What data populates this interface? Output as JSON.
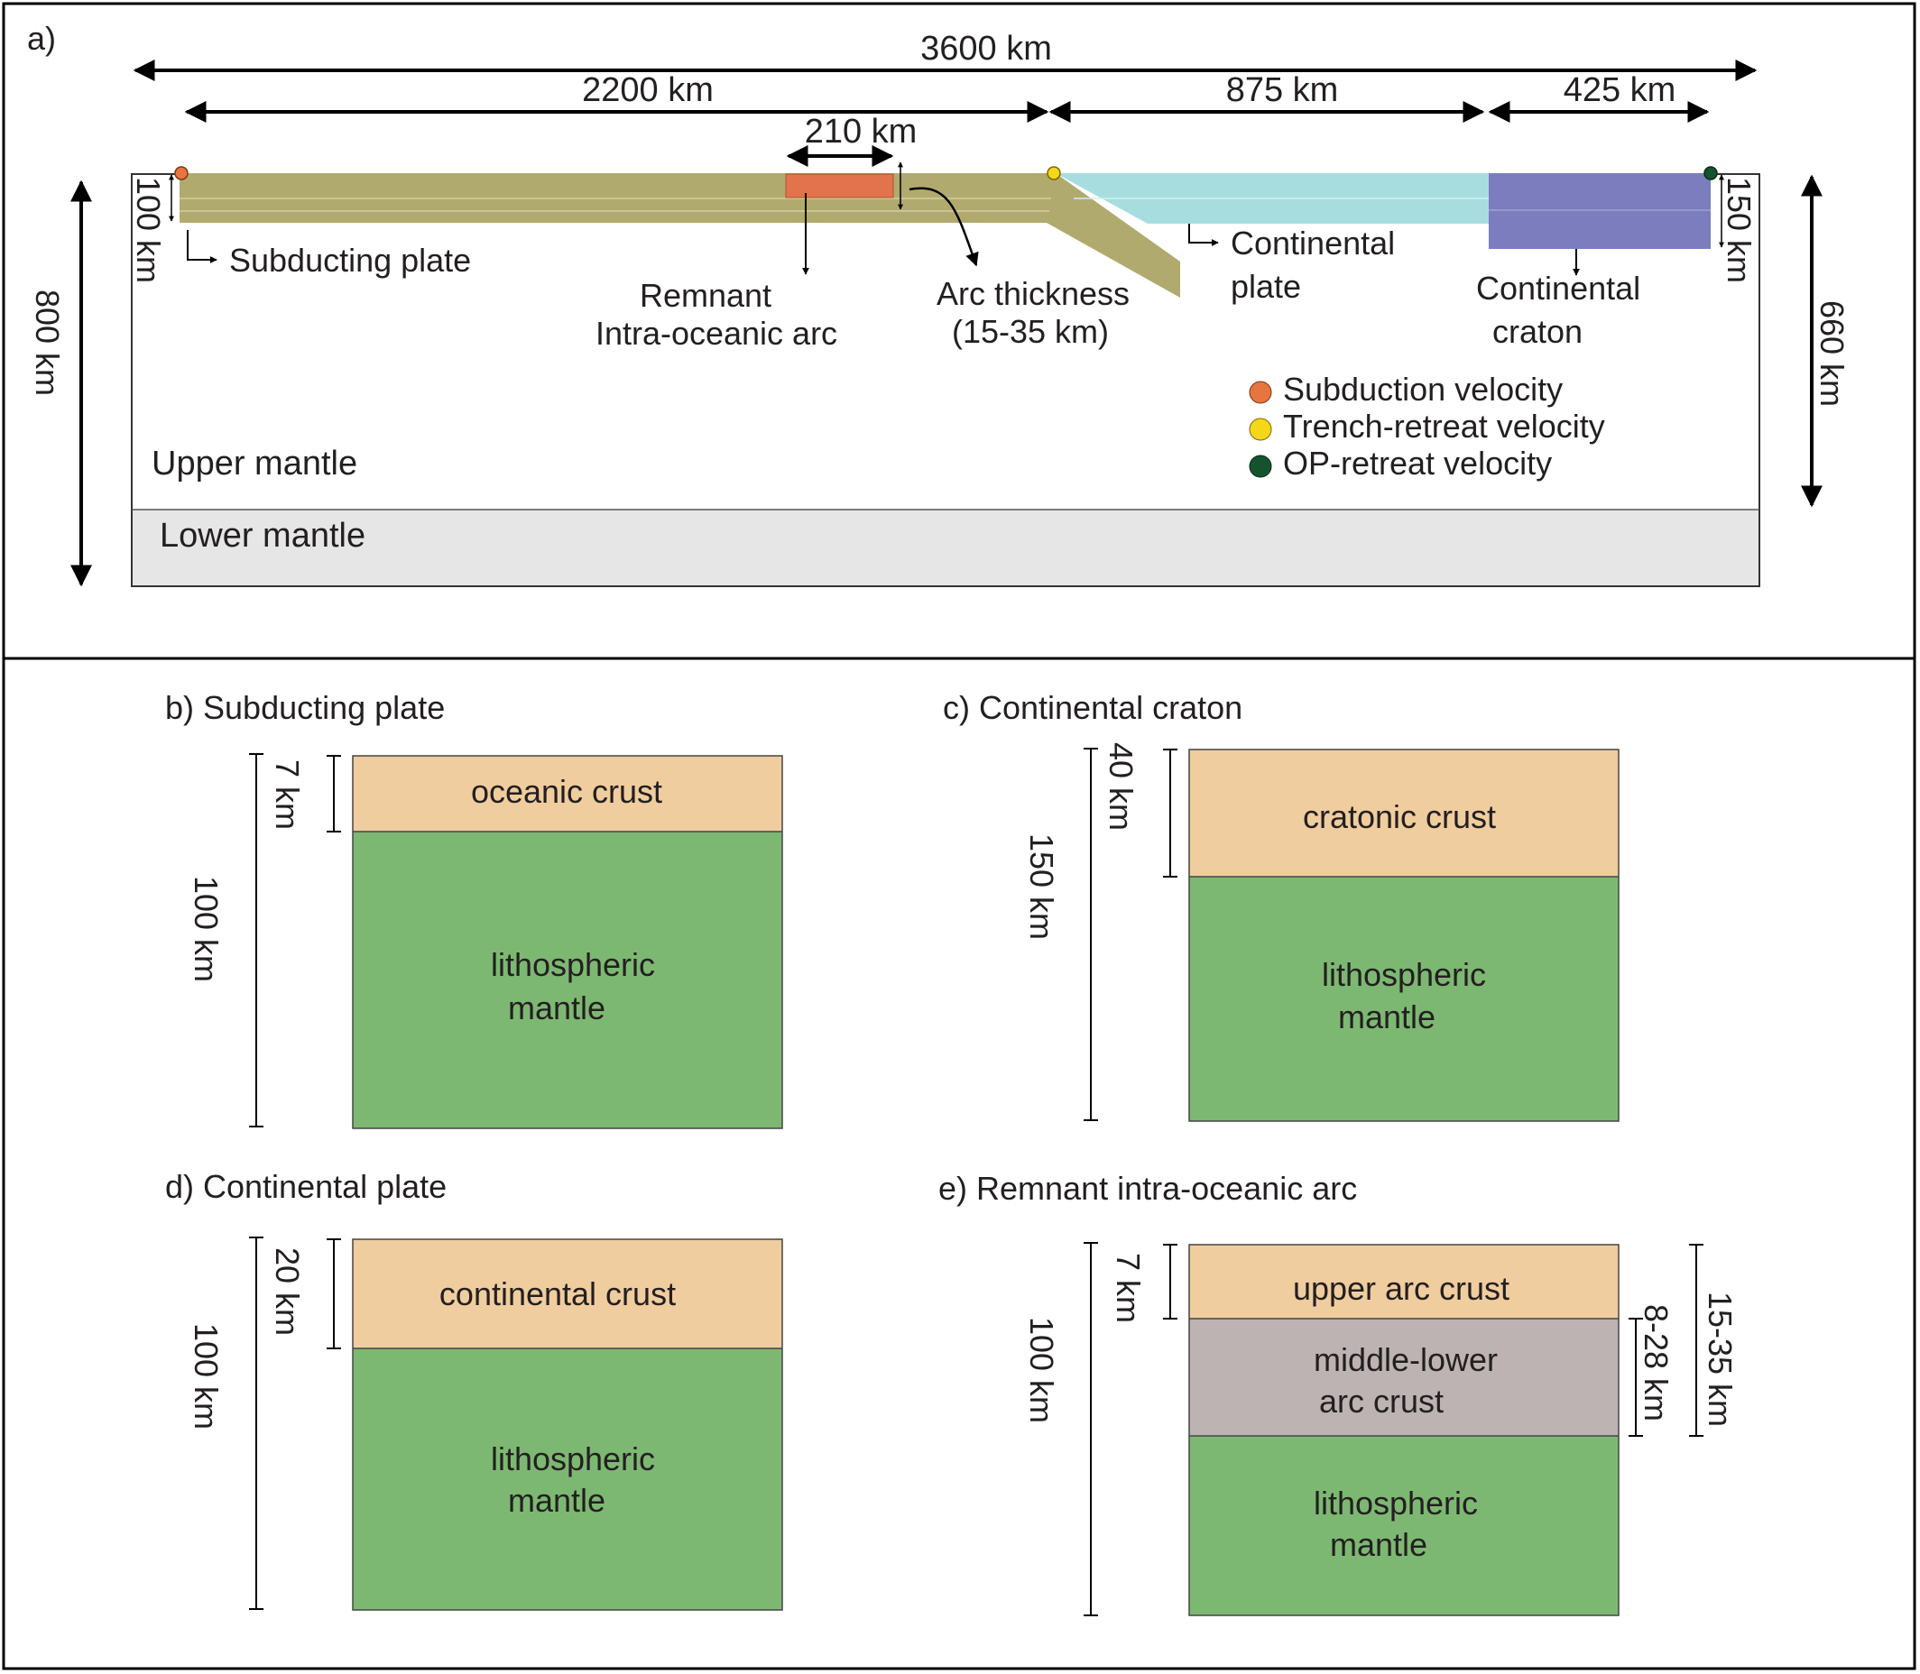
{
  "panel_a": {
    "label": "a)",
    "widths": {
      "total": "3600 km",
      "left": "2200 km",
      "middle": "875 km",
      "right": "425 km",
      "arc_width": "210 km"
    },
    "depths": {
      "model": "800 km",
      "upper_mantle": "660 km",
      "subducting_plate": "100 km",
      "craton": "150 km"
    },
    "labels": {
      "subducting_plate": "Subducting plate",
      "remnant_line1": "Remnant",
      "remnant_line2": "Intra-oceanic arc",
      "arc_thickness_line1": "Arc thickness",
      "arc_thickness_line2": "(15-35 km)",
      "continental_plate_line1": "Continental",
      "continental_plate_line2": "plate",
      "craton_line1": "Continental",
      "craton_line2": "craton",
      "upper_mantle": "Upper mantle",
      "lower_mantle": "Lower mantle"
    },
    "legend": [
      {
        "label": "Subduction velocity",
        "color": "#e8743f"
      },
      {
        "label": "Trench-retreat velocity",
        "color": "#f5d619"
      },
      {
        "label": "OP-retreat velocity",
        "color": "#14532d"
      }
    ],
    "colors": {
      "plate": "#b1aa6f",
      "arc": "#e2734d",
      "continental": "#a8dde0",
      "craton": "#7b7dbf",
      "lower_mantle": "#e6e6e6"
    }
  },
  "panel_b": {
    "title": "b) Subducting plate",
    "total": "100 km",
    "crust_thickness": "7 km",
    "layers": {
      "crust": "oceanic crust",
      "mantle_line1": "lithospheric",
      "mantle_line2": "mantle"
    }
  },
  "panel_c": {
    "title": "c) Continental craton",
    "total": "150 km",
    "crust_thickness": "40 km",
    "layers": {
      "crust": "cratonic crust",
      "mantle_line1": "lithospheric",
      "mantle_line2": "mantle"
    }
  },
  "panel_d": {
    "title": "d) Continental plate",
    "total": "100 km",
    "crust_thickness": "20 km",
    "layers": {
      "crust": "continental crust",
      "mantle_line1": "lithospheric",
      "mantle_line2": "mantle"
    }
  },
  "panel_e": {
    "title": "e) Remnant intra-oceanic arc",
    "total": "100 km",
    "upper_thickness": "7 km",
    "middle_thickness": "8-28 km",
    "arc_total": "15-35 km",
    "layers": {
      "upper": "upper arc crust",
      "middle_line1": "middle-lower",
      "middle_line2": "arc crust",
      "mantle_line1": "lithospheric",
      "mantle_line2": "mantle"
    }
  },
  "layer_colors": {
    "crust": "#f0cd9e",
    "mantle": "#7db872",
    "middle_arc": "#bcb3b2"
  }
}
